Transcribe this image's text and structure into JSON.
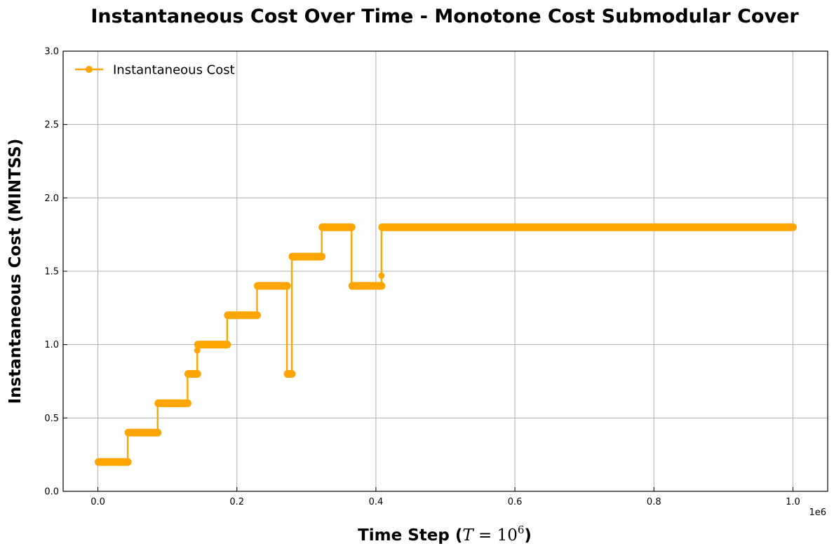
{
  "chart_data": {
    "type": "line",
    "title": "Instantaneous Cost Over Time - Monotone Cost Submodular Cover",
    "xlabel_prefix": "Time Step (",
    "xlabel_var": "T",
    "xlabel_eq": " = 10",
    "xlabel_exp": "6",
    "xlabel_suffix": ")",
    "ylabel": "Instantaneous Cost (MINTSS)",
    "x_offset_label": "1e6",
    "xlim": [
      -0.05,
      1.05
    ],
    "ylim": [
      0,
      3.0
    ],
    "xticks": [
      0.0,
      0.2,
      0.4,
      0.6,
      0.8,
      1.0
    ],
    "xtick_labels": [
      "0.0",
      "0.2",
      "0.4",
      "0.6",
      "0.8",
      "1.0"
    ],
    "yticks": [
      0.0,
      0.5,
      1.0,
      1.5,
      2.0,
      2.5,
      3.0
    ],
    "ytick_labels": [
      "0.0",
      "0.5",
      "1.0",
      "1.5",
      "2.0",
      "2.5",
      "3.0"
    ],
    "grid": true,
    "legend_position": "top-left",
    "series": [
      {
        "name": "Instantaneous Cost",
        "color": "#FFA500",
        "marker": "circle",
        "segments": [
          {
            "x0": 0.0,
            "x1": 0.043,
            "y": 0.2
          },
          {
            "x0": 0.043,
            "x1": 0.086,
            "y": 0.4
          },
          {
            "x0": 0.086,
            "x1": 0.129,
            "y": 0.6
          },
          {
            "x0": 0.129,
            "x1": 0.143,
            "y": 0.8
          },
          {
            "x0": 0.143,
            "x1": 0.186,
            "y": 1.0
          },
          {
            "x0": 0.186,
            "x1": 0.229,
            "y": 1.2
          },
          {
            "x0": 0.229,
            "x1": 0.272,
            "y": 1.4
          },
          {
            "x0": 0.272,
            "x1": 0.279,
            "y": 0.8
          },
          {
            "x0": 0.279,
            "x1": 0.322,
            "y": 1.6
          },
          {
            "x0": 0.322,
            "x1": 0.365,
            "y": 1.8
          },
          {
            "x0": 0.365,
            "x1": 0.408,
            "y": 1.4
          },
          {
            "x0": 0.408,
            "x1": 1.0,
            "y": 1.8
          }
        ],
        "outliers": [
          {
            "x": 0.143,
            "y": 0.96
          },
          {
            "x": 0.408,
            "y": 1.47
          }
        ]
      }
    ]
  }
}
